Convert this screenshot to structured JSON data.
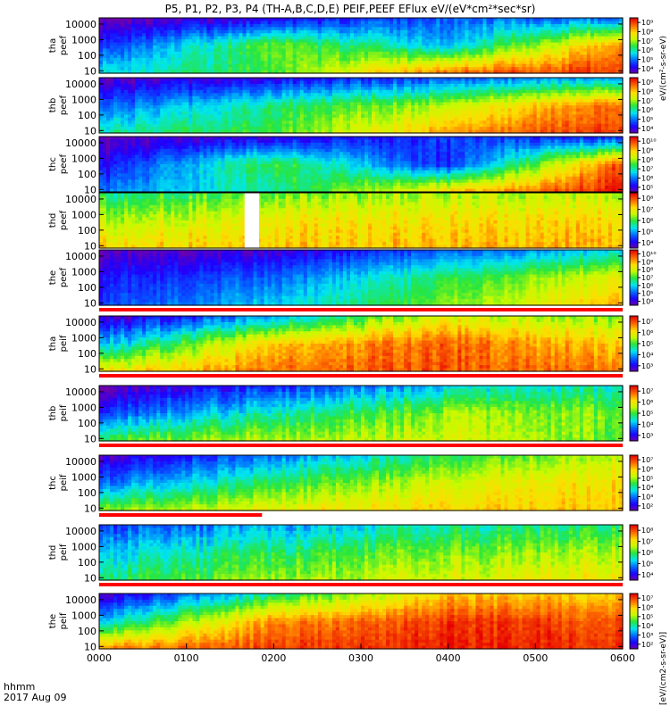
{
  "title": "P5, P1, P2, P3, P4 (TH-A,B,C,D,E) PEIF,PEEF EFlux eV/(eV*cm²*sec*sr)",
  "footer": {
    "time_label": "hhmm",
    "date_label": "2017 Aug 09"
  },
  "colorbar_label_top": "eV/(cm²-s-sr-eV)",
  "colorbar_label_bottom": "[eV/(cm2-s-sr-eV)]",
  "chart_data": [
    {
      "type": "heatmap",
      "title": "P5, P1, P2, P3, P4 (TH-A,B,C,D,E) PEIF,PEEF EFlux eV/(eV*cm²*sec*sr)",
      "xlabel": "hhmm",
      "x_ticks": [
        "0000",
        "0100",
        "0200",
        "0300",
        "0400",
        "0500",
        "0600"
      ],
      "x_range": [
        "0000",
        "0600"
      ],
      "date": "2017 Aug 09",
      "yscale": "log",
      "colormap": "rainbow",
      "panels": [
        {
          "label": "tha peef",
          "y_ticks": [
            "10",
            "100",
            "1000",
            "10000"
          ],
          "ylim": [
            7,
            25000
          ],
          "cbar_ticks": [
            "10⁴",
            "10⁵",
            "10⁶",
            "10⁷",
            "10⁸",
            "10⁹"
          ],
          "cbar_log_range": [
            3.5,
            9.5
          ],
          "profile": [
            [
              3.5,
              4.5,
              5.8
            ],
            [
              4,
              6.8,
              6.5
            ],
            [
              4.9,
              5.5,
              8.8
            ],
            [
              5,
              8.6,
              9.2
            ]
          ]
        },
        {
          "label": "thb peef",
          "y_ticks": [
            "10",
            "100",
            "1000",
            "10000"
          ],
          "ylim": [
            7,
            25000
          ],
          "cbar_ticks": [
            "10⁴",
            "10⁵",
            "10⁶",
            "10⁷",
            "10⁸",
            "10⁹"
          ],
          "cbar_log_range": [
            3.5,
            9.5
          ],
          "profile": [
            [
              3.6,
              4.8,
              6
            ],
            [
              4.1,
              6.2,
              6.6
            ],
            [
              4.8,
              7.2,
              8.4
            ],
            [
              5.4,
              8.8,
              9.2
            ]
          ]
        },
        {
          "label": "thc peef",
          "y_ticks": [
            "10",
            "100",
            "1000",
            "10000"
          ],
          "ylim": [
            7,
            25000
          ],
          "cbar_ticks": [
            "10⁵",
            "10⁶",
            "10⁷",
            "10⁸",
            "10⁹",
            "10¹⁰"
          ],
          "cbar_log_range": [
            4.5,
            10.5
          ],
          "profile": [
            [
              4.5,
              5.1,
              6
            ],
            [
              5,
              7.6,
              7.1
            ],
            [
              5.6,
              5.4,
              9
            ],
            [
              5.3,
              10,
              10.4
            ]
          ]
        },
        {
          "label": "thd peef",
          "y_ticks": [
            "10",
            "100",
            "1000",
            "10000"
          ],
          "ylim": [
            7,
            25000
          ],
          "cbar_ticks": [
            "10⁴",
            "10⁵",
            "10⁶",
            "10⁷",
            "10⁸"
          ],
          "cbar_log_range": [
            3.5,
            8.5
          ],
          "profile": [
            [
              5.7,
              6.5,
              7.2
            ],
            [
              6.2,
              7,
              7.3
            ],
            [
              6.5,
              7.1,
              7.4
            ],
            [
              6.6,
              7.2,
              7.5
            ]
          ]
        },
        {
          "label": "the peef",
          "y_ticks": [
            "10",
            "100",
            "1000",
            "10000"
          ],
          "ylim": [
            7,
            25000
          ],
          "cbar_ticks": [
            "10⁴",
            "10⁵",
            "10⁶",
            "10⁷",
            "10⁸",
            "10⁹",
            "10¹⁰"
          ],
          "cbar_log_range": [
            3.5,
            10.5
          ],
          "profile": [
            [
              3.6,
              4.4,
              4.8
            ],
            [
              4,
              5.2,
              6
            ],
            [
              5,
              6.8,
              7.4
            ],
            [
              6,
              8.2,
              9
            ]
          ]
        },
        {
          "label": "tha peif",
          "y_ticks": [
            "10",
            "100",
            "1000",
            "10000"
          ],
          "ylim": [
            7,
            25000
          ],
          "cbar_ticks": [
            "10³",
            "10⁴",
            "10⁵",
            "10⁶",
            "10⁷"
          ],
          "cbar_log_range": [
            2.5,
            7.5
          ],
          "profile": [
            [
              2.6,
              4,
              6
            ],
            [
              4,
              6.3,
              6.8
            ],
            [
              5.8,
              6.9,
              7
            ],
            [
              5.2,
              6.2,
              6.7
            ]
          ]
        },
        {
          "label": "thb peif",
          "y_ticks": [
            "10",
            "100",
            "1000",
            "10000"
          ],
          "ylim": [
            7,
            25000
          ],
          "cbar_ticks": [
            "10³",
            "10⁴",
            "10⁵",
            "10⁶",
            "10⁷"
          ],
          "cbar_log_range": [
            2.5,
            7.5
          ],
          "profile": [
            [
              2.6,
              3.5,
              5.2
            ],
            [
              3.3,
              4.6,
              5.6
            ],
            [
              4.2,
              5.4,
              5.7
            ],
            [
              4.6,
              5.3,
              5.2
            ]
          ]
        },
        {
          "label": "thc peif",
          "y_ticks": [
            "10",
            "100",
            "1000",
            "10000"
          ],
          "ylim": [
            7,
            25000
          ],
          "cbar_ticks": [
            "10²",
            "10³",
            "10⁴",
            "10⁵",
            "10⁶",
            "10⁷"
          ],
          "cbar_log_range": [
            1.5,
            7.5
          ],
          "profile": [
            [
              1.8,
              3,
              5
            ],
            [
              3,
              4.4,
              5.6
            ],
            [
              4.4,
              5.4,
              6
            ],
            [
              5.2,
              5.9,
              6.1
            ]
          ]
        },
        {
          "label": "thd peif",
          "y_ticks": [
            "10",
            "100",
            "1000",
            "10000"
          ],
          "ylim": [
            7,
            25000
          ],
          "cbar_ticks": [
            "10⁴",
            "10⁵",
            "10⁶",
            "10⁷",
            "10⁸"
          ],
          "cbar_log_range": [
            3.5,
            8.5
          ],
          "profile": [
            [
              4.4,
              5.2,
              5.8
            ],
            [
              5,
              5.9,
              6.4
            ],
            [
              5.6,
              6.3,
              6.8
            ],
            [
              5.8,
              6.5,
              7
            ]
          ]
        },
        {
          "label": "the peif",
          "y_ticks": [
            "10",
            "100",
            "1000",
            "10000"
          ],
          "ylim": [
            7,
            25000
          ],
          "cbar_ticks": [
            "10²",
            "10³",
            "10⁴",
            "10⁵",
            "10⁶",
            "10⁷"
          ],
          "cbar_log_range": [
            1.5,
            7.5
          ],
          "profile": [
            [
              1.8,
              3.6,
              6.6
            ],
            [
              4,
              6.4,
              7
            ],
            [
              6,
              7.1,
              7.3
            ],
            [
              6,
              6.9,
              7.2
            ]
          ]
        }
      ],
      "gaps": [
        {
          "panel": "thd peef",
          "from": "0140",
          "to": "0150"
        }
      ],
      "flag_bars": [
        {
          "below": "the peef",
          "color": "#ff0000",
          "from": "0000",
          "to": "0600"
        },
        {
          "below": "tha peif",
          "color": "#ff0000",
          "from": "0000",
          "to": "0600"
        },
        {
          "below": "thb peif",
          "color": "#ff0000",
          "from": "0000",
          "to": "0600"
        },
        {
          "below": "thc peif",
          "color": "#ff0000",
          "from": "0000",
          "to": "0152"
        },
        {
          "below": "thd peif",
          "color": "#ff0000",
          "from": "0000",
          "to": "0600"
        }
      ]
    }
  ]
}
